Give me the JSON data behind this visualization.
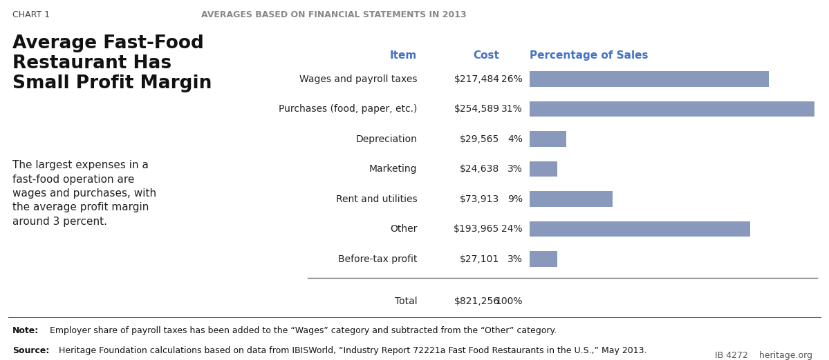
{
  "chart_label": "CHART 1",
  "title_main": "Average Fast-Food\nRestaurant Has\nSmall Profit Margin",
  "subtitle": "AVERAGES BASED ON FINANCIAL STATEMENTS IN 2013",
  "body_text": "The largest expenses in a\nfast-food operation are\nwages and purchases, with\nthe average profit margin\naround 3 percent.",
  "col_headers": [
    "Item",
    "Cost",
    "Percentage of Sales"
  ],
  "items": [
    "Wages and payroll taxes",
    "Purchases (food, paper, etc.)",
    "Depreciation",
    "Marketing",
    "Rent and utilities",
    "Other",
    "Before-tax profit"
  ],
  "costs": [
    "$217,484",
    "$254,589",
    "$29,565",
    "$24,638",
    "$73,913",
    "$193,965",
    "$27,101"
  ],
  "percentages": [
    "26%",
    "31%",
    "4%",
    "3%",
    "9%",
    "24%",
    "3%"
  ],
  "pct_values": [
    26,
    31,
    4,
    3,
    9,
    24,
    3
  ],
  "total_item": "Total",
  "total_cost": "$821,256",
  "total_pct": "100%",
  "bar_color": "#8899bb",
  "bar_max": 31,
  "note_bold": "Note:",
  "note_rest": " Employer share of payroll taxes has been added to the “Wages” category and subtracted from the “Other” category.",
  "source_bold": "Source:",
  "source_rest": " Heritage Foundation calculations based on data from IBISWorld, “Industry Report 72221a Fast Food Restaurants in the U.S.,” May 2013.",
  "footer_right": "IB 4272    heritage.org",
  "header_color": "#4472c4",
  "bg_color": "#ffffff"
}
